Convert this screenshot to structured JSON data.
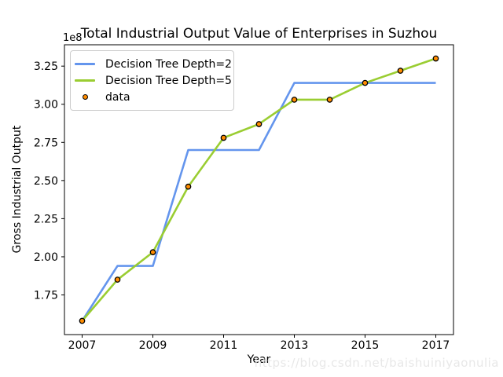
{
  "chart_data": {
    "type": "line",
    "title": "Total Industrial Output Value of Enterprises in Suzhou",
    "offset_text": "1e8",
    "xlabel": "Year",
    "ylabel": "Gross Industrial Output",
    "x": [
      2007,
      2008,
      2009,
      2010,
      2011,
      2012,
      2013,
      2014,
      2015,
      2016,
      2017
    ],
    "series": [
      {
        "name": "Decision Tree Depth=2",
        "color": "#6495ED",
        "values": [
          1.58,
          1.94,
          1.94,
          2.7,
          2.7,
          2.7,
          3.14,
          3.14,
          3.14,
          3.14,
          3.14
        ]
      },
      {
        "name": "Decision Tree Depth=5",
        "color": "#9ACD32",
        "values": [
          1.58,
          1.85,
          2.03,
          2.46,
          2.78,
          2.87,
          3.03,
          3.03,
          3.14,
          3.22,
          3.3
        ]
      }
    ],
    "scatter": {
      "name": "data",
      "color": "#FF8C00",
      "edge_color": "#000000",
      "values": [
        1.58,
        1.85,
        2.03,
        2.46,
        2.78,
        2.87,
        3.03,
        3.03,
        3.14,
        3.22,
        3.3
      ]
    },
    "value_scale": "1e8",
    "xlim": [
      2006.5,
      2017.5
    ],
    "ylim": [
      1.49,
      3.39
    ],
    "xticks": [
      "2007",
      "2009",
      "2011",
      "2013",
      "2015",
      "2017"
    ],
    "xtick_values": [
      2007,
      2009,
      2011,
      2013,
      2015,
      2017
    ],
    "yticks": [
      "1.75",
      "2.00",
      "2.25",
      "2.50",
      "2.75",
      "3.00",
      "3.25"
    ],
    "ytick_values": [
      1.75,
      2.0,
      2.25,
      2.5,
      2.75,
      3.0,
      3.25
    ],
    "grid": false,
    "legend_position": "upper left",
    "axis_color": "#000000"
  },
  "legend": {
    "entries": [
      {
        "label": "Decision Tree Depth=2",
        "marker": "line"
      },
      {
        "label": "Decision Tree Depth=5",
        "marker": "line"
      },
      {
        "label": "data",
        "marker": "dot"
      }
    ]
  },
  "watermark": {
    "text": "https://blog.csdn.net/baishuiniyaonulia",
    "color": "#e8e8e8"
  }
}
